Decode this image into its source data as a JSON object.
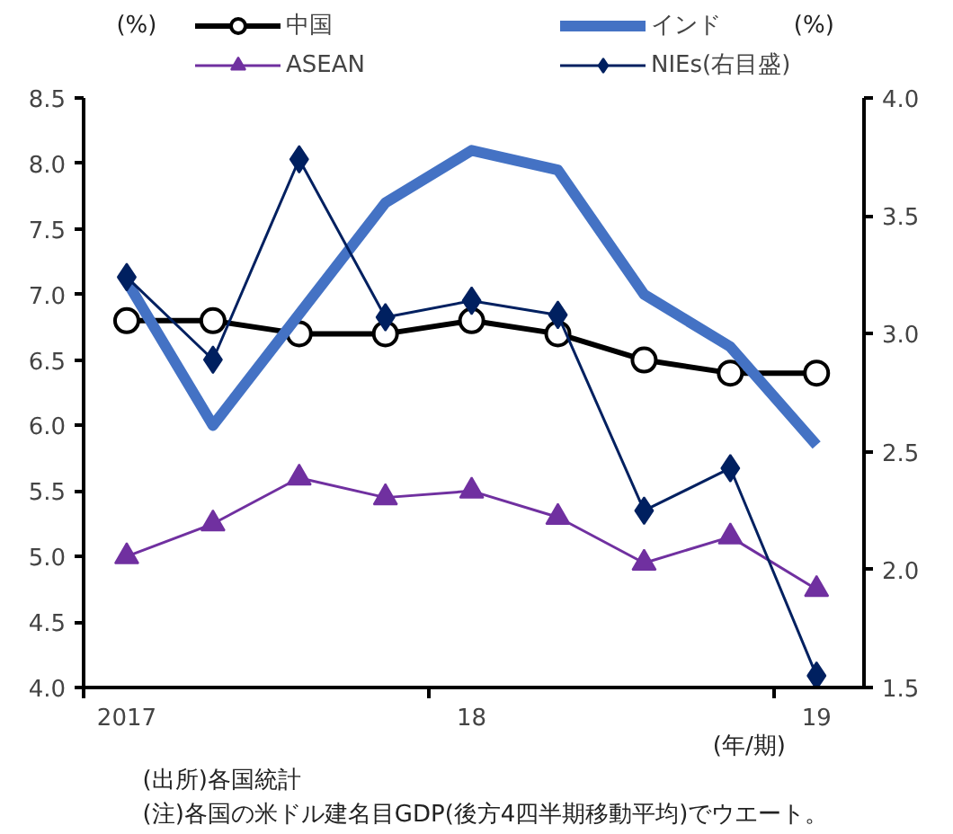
{
  "chart_data": {
    "type": "line",
    "categories": [
      "2017",
      null,
      null,
      null,
      "18",
      null,
      null,
      null,
      "19"
    ],
    "xlabel": "(年/期)",
    "ylabel": "(%)",
    "y2label": "(%)",
    "ylim": [
      4.0,
      8.5
    ],
    "yticks": [
      {
        "value": 4.0,
        "label": "4.0"
      },
      {
        "value": 4.5,
        "label": "4.5"
      },
      {
        "value": 5.0,
        "label": "5.0"
      },
      {
        "value": 5.5,
        "label": "5.5"
      },
      {
        "value": 6.0,
        "label": "6.0"
      },
      {
        "value": 6.5,
        "label": "6.5"
      },
      {
        "value": 7.0,
        "label": "7.0"
      },
      {
        "value": 7.5,
        "label": "7.5"
      },
      {
        "value": 8.0,
        "label": "8.0"
      },
      {
        "value": 8.5,
        "label": "8.5"
      }
    ],
    "y2lim": [
      1.5,
      4.0
    ],
    "y2ticks": [
      {
        "value": 1.5,
        "label": "1.5"
      },
      {
        "value": 2.0,
        "label": "2.0"
      },
      {
        "value": 2.5,
        "label": "2.5"
      },
      {
        "value": 3.0,
        "label": "3.0"
      },
      {
        "value": 3.5,
        "label": "3.5"
      },
      {
        "value": 4.0,
        "label": "4.0"
      }
    ],
    "grid": false,
    "legend": "top",
    "series": [
      {
        "name": "中国",
        "color": "#000000",
        "marker": "circle",
        "values": [
          6.8,
          6.8,
          6.7,
          6.7,
          6.8,
          6.7,
          6.5,
          6.4,
          6.4
        ]
      },
      {
        "name": "ASEAN",
        "color": "#7030a0",
        "marker": "triangle",
        "values": [
          5.0,
          5.25,
          5.6,
          5.45,
          5.5,
          5.3,
          4.95,
          5.15,
          4.75
        ]
      },
      {
        "name": "インド",
        "color": "#4472c4",
        "marker": "none",
        "values": [
          7.1,
          6.0,
          6.85,
          7.7,
          8.1,
          7.95,
          7.0,
          6.6,
          5.85
        ]
      },
      {
        "name": "NIEs(右目盛)",
        "color": "#002060",
        "marker": "diamond",
        "axis": "y2",
        "values": [
          3.24,
          2.89,
          3.74,
          3.07,
          3.14,
          3.08,
          2.25,
          2.43,
          1.55
        ]
      }
    ],
    "annotations": [
      "(出所)各国統計",
      "(注)各国の米ドル建名目GDP(後方4四半期移動平均)でウエート。"
    ]
  }
}
